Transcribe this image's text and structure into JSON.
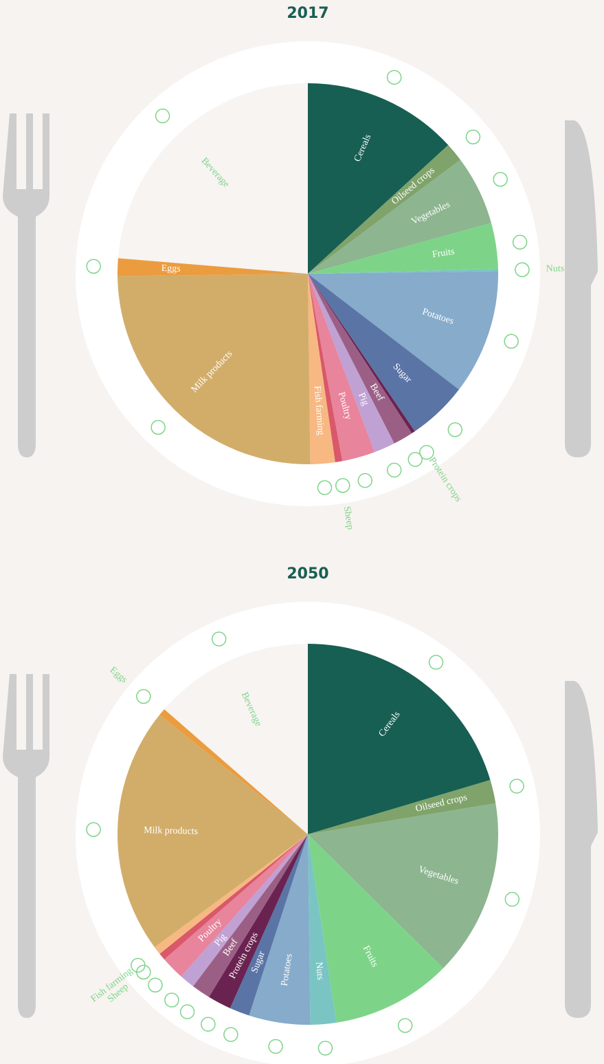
{
  "chart_data": [
    {
      "type": "pie",
      "title": "2017",
      "categories": [
        "Cereals",
        "Oilseed crops",
        "Vegetables",
        "Fruits",
        "Nuts",
        "Potatoes",
        "Sugar",
        "Protein crops",
        "Beef",
        "Pig",
        "Poultry",
        "Sheep",
        "Fish farming",
        "Milk products",
        "Eggs",
        "Beverage"
      ],
      "values": [
        13.2,
        1.6,
        5.9,
        3.9,
        0.2,
        10.6,
        5.1,
        0.3,
        1.7,
        1.8,
        2.8,
        0.6,
        2.1,
        25,
        1.5,
        23.7
      ],
      "colors": [
        "#175f52",
        "#7fa36a",
        "#8db590",
        "#7dd488",
        "#7bc4c4",
        "#86abcb",
        "#5b74a6",
        "#6a2350",
        "#9b5f86",
        "#c0a1d4",
        "#e8849c",
        "#d9586a",
        "#f7b882",
        "#d2ad6a",
        "#eb9c3f",
        "#f7f4f1"
      ]
    },
    {
      "type": "pie",
      "title": "2050",
      "categories": [
        "Cereals",
        "Oilseed crops",
        "Vegetables",
        "Fruits",
        "Nuts",
        "Potatoes",
        "Sugar",
        "Protein crops",
        "Beef",
        "Pig",
        "Poultry",
        "Sheep",
        "Fish farming",
        "Milk products",
        "Eggs",
        "Beverage"
      ],
      "values": [
        20.4,
        2.0,
        15.0,
        10.2,
        2.2,
        5.2,
        1.7,
        2.0,
        1.6,
        1.3,
        2.0,
        0.6,
        0.7,
        20.9,
        0.6,
        13.6
      ],
      "colors": [
        "#175f52",
        "#7fa36a",
        "#8db590",
        "#7dd488",
        "#7bc4c4",
        "#86abcb",
        "#5b74a6",
        "#6a2350",
        "#9b5f86",
        "#c0a1d4",
        "#e8849c",
        "#d9586a",
        "#f7b882",
        "#d2ad6a",
        "#eb9c3f",
        "#f7f4f1"
      ]
    }
  ]
}
